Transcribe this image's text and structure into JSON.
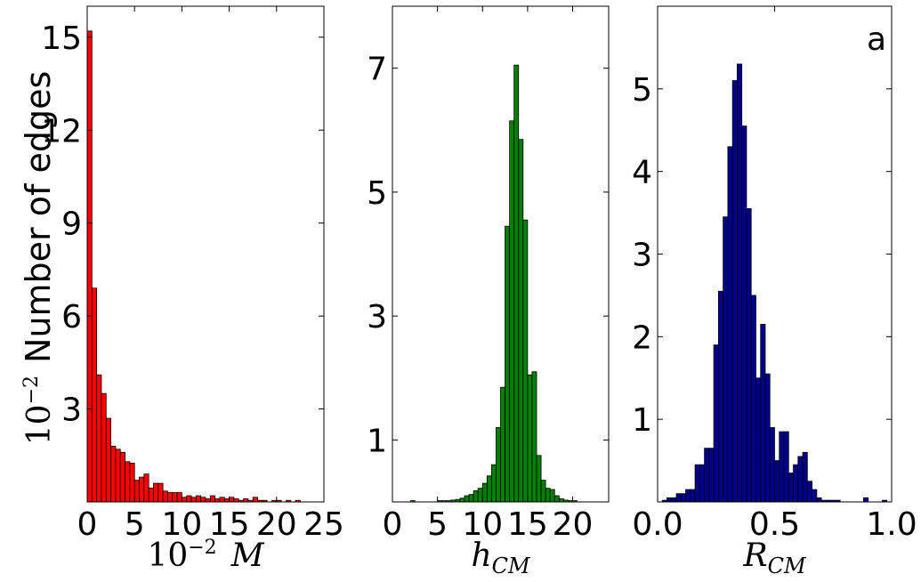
{
  "figure": {
    "ylabel_text": "Number of edges",
    "ylabel_prefix_base": "10",
    "ylabel_prefix_exp": "−2",
    "panel_tag": "a"
  },
  "chart_data": [
    {
      "type": "bar",
      "id": "M",
      "color": "#ff0000",
      "xlabel_base": "10",
      "xlabel_exp": "−2",
      "xlabel_var": "M",
      "xlim": [
        0,
        25
      ],
      "ylim": [
        0,
        16
      ],
      "xticks": [
        0,
        5,
        10,
        15,
        20,
        25
      ],
      "yticks": [
        3,
        6,
        9,
        12,
        15
      ],
      "xticklabels": [
        "0",
        "5",
        "10",
        "15",
        "20",
        "25"
      ],
      "yticklabels": [
        "3",
        "6",
        "9",
        "12",
        "15"
      ],
      "bin_width": 0.5,
      "bin_start": 0,
      "values": [
        15.2,
        6.9,
        4.1,
        3.5,
        2.7,
        1.8,
        1.7,
        1.6,
        1.3,
        1.25,
        0.7,
        0.8,
        0.9,
        0.45,
        0.6,
        0.6,
        0.35,
        0.3,
        0.3,
        0.3,
        0.15,
        0.2,
        0.15,
        0.2,
        0.15,
        0.1,
        0.2,
        0.1,
        0.15,
        0.1,
        0.15,
        0.1,
        0.05,
        0.1,
        0.05,
        0.15,
        0.05,
        0.05,
        0.0,
        0.05,
        0.05,
        0.0,
        0.05,
        0.0,
        0.05,
        0.0,
        0.0
      ]
    },
    {
      "type": "bar",
      "id": "hCM",
      "color": "#008000",
      "xlabel_var": "h",
      "xlabel_sub": "CM",
      "xlim": [
        0,
        24
      ],
      "ylim": [
        0,
        8
      ],
      "xticks": [
        0,
        5,
        10,
        15,
        20
      ],
      "yticks": [
        1,
        3,
        5,
        7
      ],
      "xticklabels": [
        "0",
        "5",
        "10",
        "15",
        "20"
      ],
      "yticklabels": [
        "1",
        "3",
        "5",
        "7"
      ],
      "bin_width": 0.5,
      "bin_start": 0,
      "values": [
        0,
        0,
        0,
        0,
        0.02,
        0,
        0,
        0,
        0,
        0,
        0.02,
        0.02,
        0.02,
        0.03,
        0.04,
        0.06,
        0.1,
        0.12,
        0.18,
        0.22,
        0.3,
        0.42,
        0.6,
        1.2,
        1.85,
        4.45,
        6.15,
        7.05,
        5.85,
        4.55,
        2.05,
        2.1,
        0.75,
        0.35,
        0.22,
        0.2,
        0.1,
        0.05,
        0.03,
        0.02,
        0.02,
        0,
        0,
        0,
        0,
        0,
        0,
        0
      ]
    },
    {
      "type": "bar",
      "id": "RCM",
      "color": "#00008b",
      "xlabel_var": "R",
      "xlabel_sub": "CM",
      "xlim": [
        0,
        1
      ],
      "ylim": [
        0,
        6
      ],
      "xticks": [
        0,
        0.5,
        1
      ],
      "yticks": [
        1,
        2,
        3,
        4,
        5
      ],
      "xticklabels": [
        "0.0",
        "0.5",
        "1.0"
      ],
      "yticklabels": [
        "1",
        "2",
        "3",
        "4",
        "5"
      ],
      "bin_width": 0.02,
      "bin_start": 0,
      "values": [
        0,
        0.02,
        0.05,
        0.05,
        0.1,
        0.1,
        0.15,
        0.15,
        0.45,
        0.45,
        0.65,
        0.65,
        1.9,
        2.55,
        3.45,
        4.3,
        5.1,
        5.3,
        4.55,
        3.55,
        2.5,
        1.5,
        2.15,
        1.55,
        0.9,
        0.5,
        0.85,
        0.85,
        0.35,
        0.45,
        0.55,
        0.6,
        0.25,
        0.15,
        0.05,
        0.02,
        0.02,
        0.02,
        0.02,
        0,
        0,
        0,
        0,
        0,
        0.05,
        0,
        0,
        0,
        0.02,
        0
      ]
    }
  ]
}
